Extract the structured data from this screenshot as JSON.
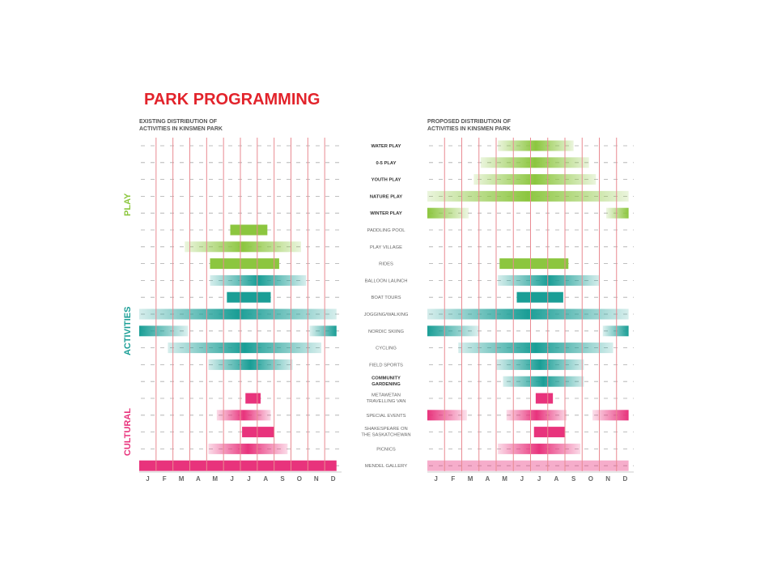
{
  "title": "PARK PROGRAMMING",
  "existing_heading": [
    "EXISTING DISTRIBUTION OF",
    "ACTIVITIES IN KINSMEN PARK"
  ],
  "proposed_heading": [
    "PROPOSED DISTRIBUTION OF",
    "ACTIVITIES IN KINSMEN PARK"
  ],
  "months": [
    "J",
    "F",
    "M",
    "A",
    "M",
    "J",
    "J",
    "A",
    "S",
    "O",
    "N",
    "D"
  ],
  "colors": {
    "title": "#e2232b",
    "play": "#8cc63f",
    "activities": "#1a9e96",
    "cultural": "#e8337c",
    "gridline": "#e98a92",
    "dash": "#aaaaaa"
  },
  "groups": [
    {
      "name": "PLAY",
      "color": "play"
    },
    {
      "name": "ACTIVITIES",
      "color": "activities"
    },
    {
      "name": "CULTURAL",
      "color": "cultural"
    }
  ],
  "chart_data": [
    {
      "type": "gantt",
      "title": "EXISTING DISTRIBUTION OF ACTIVITIES IN KINSMEN PARK",
      "unit": "month index (0 = Jan start, 12 = Dec end)",
      "rows": [
        {
          "label": "WATER PLAY",
          "group": "play",
          "bars": []
        },
        {
          "label": "0-5 PLAY",
          "group": "play",
          "bars": []
        },
        {
          "label": "YOUTH PLAY",
          "group": "play",
          "bars": []
        },
        {
          "label": "NATURE PLAY",
          "group": "play",
          "bars": []
        },
        {
          "label": "WINTER PLAY",
          "group": "play",
          "bars": []
        },
        {
          "label": "PADDLING POOL",
          "group": "play",
          "bars": [
            {
              "start": 5.4,
              "end": 7.6,
              "style": "solid"
            }
          ]
        },
        {
          "label": "PLAY VILLAGE",
          "group": "play",
          "bars": [
            {
              "start": 2.7,
              "end": 9.6,
              "style": "fade"
            }
          ]
        },
        {
          "label": "RIDES",
          "group": "play",
          "bars": [
            {
              "start": 4.2,
              "end": 8.3,
              "style": "solid"
            }
          ]
        },
        {
          "label": "BALLOON LAUNCH",
          "group": "activities",
          "bars": [
            {
              "start": 4.2,
              "end": 9.9,
              "style": "fade"
            }
          ]
        },
        {
          "label": "BOAT TOURS",
          "group": "activities",
          "bars": [
            {
              "start": 5.2,
              "end": 7.8,
              "style": "solid"
            }
          ]
        },
        {
          "label": "JOGGING/WALKING",
          "group": "activities",
          "bars": [
            {
              "start": 0.0,
              "end": 11.7,
              "style": "fade"
            }
          ]
        },
        {
          "label": "NORDIC SKIING",
          "group": "activities",
          "bars": [
            {
              "start": 0.0,
              "end": 2.9,
              "style": "fade-right"
            },
            {
              "start": 10.1,
              "end": 11.7,
              "style": "fade-left"
            }
          ]
        },
        {
          "label": "CYCLING",
          "group": "activities",
          "bars": [
            {
              "start": 1.7,
              "end": 10.8,
              "style": "fade"
            }
          ]
        },
        {
          "label": "FIELD SPORTS",
          "group": "activities",
          "bars": [
            {
              "start": 4.1,
              "end": 9.1,
              "style": "fade"
            }
          ]
        },
        {
          "label": "COMMUNITY GARDENING",
          "group": "activities",
          "bars": []
        },
        {
          "label": "METAWETAN TRAVELLING VAN",
          "group": "cultural",
          "bars": [
            {
              "start": 6.3,
              "end": 7.2,
              "style": "solid"
            }
          ]
        },
        {
          "label": "SPECIAL EVENTS",
          "group": "cultural",
          "bars": [
            {
              "start": 4.6,
              "end": 7.8,
              "style": "fade"
            }
          ]
        },
        {
          "label": "SHAKESPEARE ON THE SASKATCHEWAN",
          "group": "cultural",
          "bars": [
            {
              "start": 6.1,
              "end": 8.0,
              "style": "solid"
            }
          ]
        },
        {
          "label": "PICNICS",
          "group": "cultural",
          "bars": [
            {
              "start": 4.1,
              "end": 8.8,
              "style": "fade"
            }
          ]
        },
        {
          "label": "MENDEL GALLERY",
          "group": "cultural",
          "bars": [
            {
              "start": 0.0,
              "end": 11.7,
              "style": "solid"
            }
          ]
        }
      ]
    },
    {
      "type": "gantt",
      "title": "PROPOSED DISTRIBUTION OF ACTIVITIES IN KINSMEN PARK",
      "unit": "month index (0 = Jan start, 12 = Dec end)",
      "rows": [
        {
          "label": "WATER PLAY",
          "group": "play",
          "bars": [
            {
              "start": 4.1,
              "end": 8.5,
              "style": "fade"
            }
          ]
        },
        {
          "label": "0-5 PLAY",
          "group": "play",
          "bars": [
            {
              "start": 3.1,
              "end": 9.4,
              "style": "fade"
            }
          ]
        },
        {
          "label": "YOUTH PLAY",
          "group": "play",
          "bars": [
            {
              "start": 2.7,
              "end": 9.8,
              "style": "fade"
            }
          ]
        },
        {
          "label": "NATURE PLAY",
          "group": "play",
          "bars": [
            {
              "start": 0.0,
              "end": 11.7,
              "style": "fade"
            }
          ]
        },
        {
          "label": "WINTER PLAY",
          "group": "play",
          "bars": [
            {
              "start": 0.0,
              "end": 2.4,
              "style": "fade-right"
            },
            {
              "start": 10.4,
              "end": 11.7,
              "style": "fade-left"
            }
          ]
        },
        {
          "label": "PADDLING POOL",
          "group": "play",
          "bars": []
        },
        {
          "label": "PLAY VILLAGE",
          "group": "play",
          "bars": []
        },
        {
          "label": "RIDES",
          "group": "play",
          "bars": [
            {
              "start": 4.2,
              "end": 8.2,
              "style": "solid"
            }
          ]
        },
        {
          "label": "BALLOON LAUNCH",
          "group": "activities",
          "bars": [
            {
              "start": 4.1,
              "end": 10.0,
              "style": "fade"
            }
          ]
        },
        {
          "label": "BOAT TOURS",
          "group": "activities",
          "bars": [
            {
              "start": 5.2,
              "end": 7.9,
              "style": "solid"
            }
          ]
        },
        {
          "label": "JOGGING/WALKING",
          "group": "activities",
          "bars": [
            {
              "start": 0.0,
              "end": 11.7,
              "style": "fade"
            }
          ]
        },
        {
          "label": "NORDIC SKIING",
          "group": "activities",
          "bars": [
            {
              "start": 0.0,
              "end": 3.0,
              "style": "fade-right"
            },
            {
              "start": 10.2,
              "end": 11.7,
              "style": "fade-left"
            }
          ]
        },
        {
          "label": "CYCLING",
          "group": "activities",
          "bars": [
            {
              "start": 1.8,
              "end": 10.8,
              "style": "fade"
            }
          ]
        },
        {
          "label": "FIELD SPORTS",
          "group": "activities",
          "bars": [
            {
              "start": 4.0,
              "end": 9.1,
              "style": "fade"
            }
          ]
        },
        {
          "label": "COMMUNITY GARDENING",
          "group": "activities",
          "bars": [
            {
              "start": 4.4,
              "end": 9.1,
              "style": "fade"
            }
          ]
        },
        {
          "label": "METAWETAN TRAVELLING VAN",
          "group": "cultural",
          "bars": [
            {
              "start": 6.3,
              "end": 7.3,
              "style": "solid"
            }
          ]
        },
        {
          "label": "SPECIAL EVENTS",
          "group": "cultural",
          "bars": [
            {
              "start": 0.0,
              "end": 2.3,
              "style": "fade-right"
            },
            {
              "start": 4.6,
              "end": 8.1,
              "style": "fade"
            },
            {
              "start": 9.6,
              "end": 11.7,
              "style": "fade-left"
            }
          ]
        },
        {
          "label": "SHAKESPEARE ON THE SASKATCHEWAN",
          "group": "cultural",
          "bars": [
            {
              "start": 6.2,
              "end": 8.0,
              "style": "solid"
            }
          ]
        },
        {
          "label": "PICNICS",
          "group": "cultural",
          "bars": [
            {
              "start": 4.1,
              "end": 8.9,
              "style": "fade"
            }
          ]
        },
        {
          "label": "MENDEL GALLERY",
          "group": "cultural",
          "bars": [
            {
              "start": 0.0,
              "end": 11.7,
              "style": "light"
            }
          ]
        }
      ]
    }
  ]
}
